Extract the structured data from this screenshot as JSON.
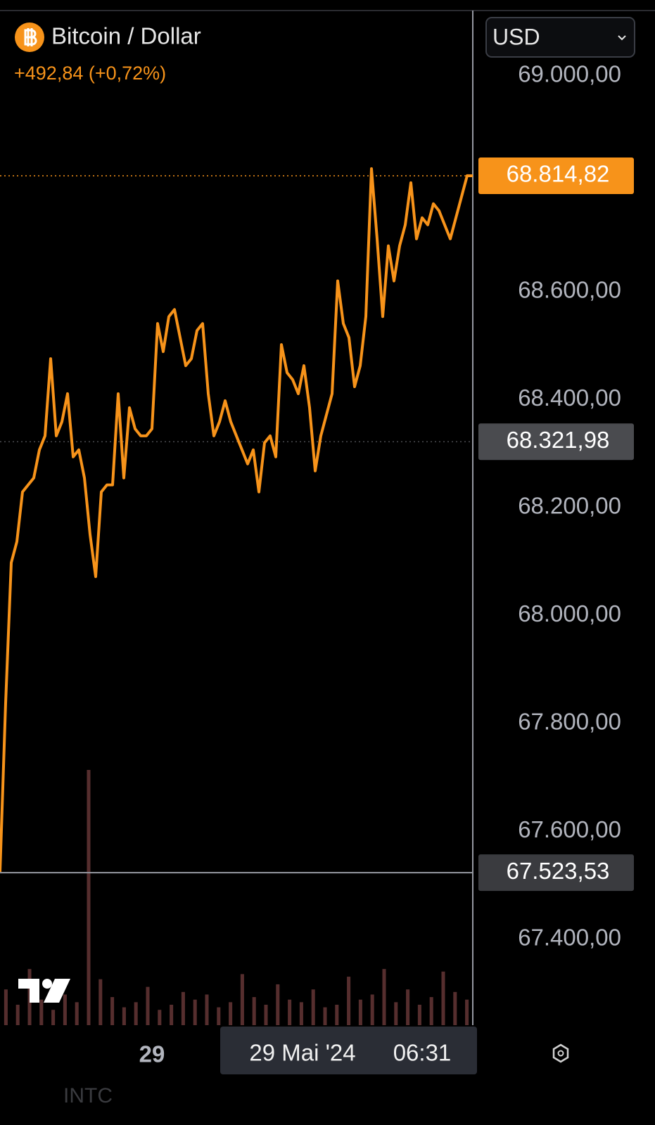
{
  "header": {
    "title": "Bitcoin / Dollar",
    "change": "+492,84 (+0,72%)",
    "currency": "USD"
  },
  "chart_data": {
    "type": "line",
    "color": "#f7931a",
    "values": [
      67525,
      67838,
      68098,
      68137,
      68229,
      68242,
      68255,
      68307,
      68333,
      68476,
      68333,
      68359,
      68411,
      68294,
      68307,
      68255,
      68150,
      68072,
      68229,
      68242,
      68242,
      68411,
      68255,
      68385,
      68346,
      68333,
      68333,
      68346,
      68541,
      68489,
      68554,
      68567,
      68515,
      68463,
      68476,
      68528,
      68541,
      68411,
      68333,
      68359,
      68398,
      68359,
      68333,
      68307,
      68281,
      68307,
      68229,
      68320,
      68333,
      68294,
      68502,
      68450,
      68437,
      68411,
      68463,
      68385,
      68268,
      68333,
      68372,
      68411,
      68620,
      68541,
      68515,
      68424,
      68463,
      68554,
      68828,
      68698,
      68554,
      68685,
      68620,
      68685,
      68724,
      68802,
      68698,
      68737,
      68724,
      68763,
      68750,
      68724,
      68698,
      68737,
      68776,
      68815,
      68814.82
    ],
    "xlim": [
      0,
      84
    ],
    "xticks": [
      {
        "value": 27,
        "label": "29"
      }
    ],
    "ylim": [
      67241,
      69121
    ],
    "yticks": [
      {
        "value": 67400,
        "label": "67.400,00"
      },
      {
        "value": 67600,
        "label": "67.600,00"
      },
      {
        "value": 67800,
        "label": "67.800,00"
      },
      {
        "value": 68000,
        "label": "68.000,00"
      },
      {
        "value": 68200,
        "label": "68.200,00"
      },
      {
        "value": 68400,
        "label": "68.400,00"
      },
      {
        "value": 68600,
        "label": "68.600,00"
      },
      {
        "value": 69000,
        "label": "69.000,00"
      }
    ],
    "price_labels": [
      {
        "value": 68814.82,
        "label": "68.814,82",
        "color": "#f7931a",
        "line": "dotted"
      },
      {
        "value": 68321.98,
        "label": "68.321,98",
        "color": "#4a4b4f",
        "line": "dotted"
      },
      {
        "value": 67523.53,
        "label": "67.523,53",
        "color": "#3a3b3f",
        "line": "solid"
      }
    ],
    "crosshair": {
      "date": "29 Mai '24",
      "time": "06:31"
    },
    "volume": {
      "color": "#6b3a3a",
      "ylim": [
        0,
        100
      ],
      "values": [
        14,
        8,
        22,
        10,
        6,
        12,
        9,
        100,
        18,
        11,
        7,
        9,
        15,
        6,
        8,
        13,
        10,
        12,
        7,
        9,
        20,
        11,
        8,
        16,
        10,
        9,
        14,
        7,
        8,
        19,
        10,
        12,
        22,
        9,
        14,
        8,
        11,
        21,
        13,
        10
      ]
    }
  },
  "footer": {
    "ticker": "INTC"
  }
}
